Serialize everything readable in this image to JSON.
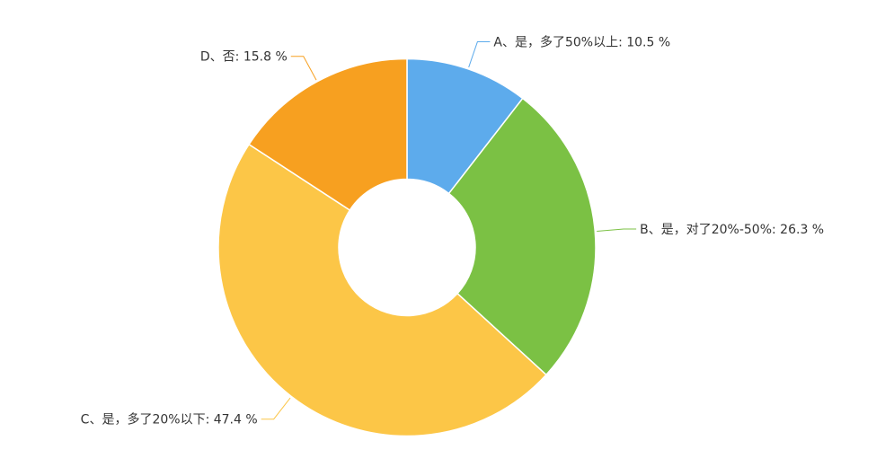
{
  "chart_data": {
    "type": "donut",
    "categories": [
      "A、是，多了50%以上",
      "B、是，对了20%-50%",
      "C、是，多了20%以下",
      "D、否"
    ],
    "values": [
      10.5,
      26.3,
      47.4,
      15.8
    ],
    "value_labels": [
      ": 10.5 %",
      ": 26.3 %",
      ": 47.4 %",
      ": 15.8 %"
    ],
    "colors": [
      "#5dabec",
      "#7bc144",
      "#fcc647",
      "#f7a020"
    ]
  }
}
